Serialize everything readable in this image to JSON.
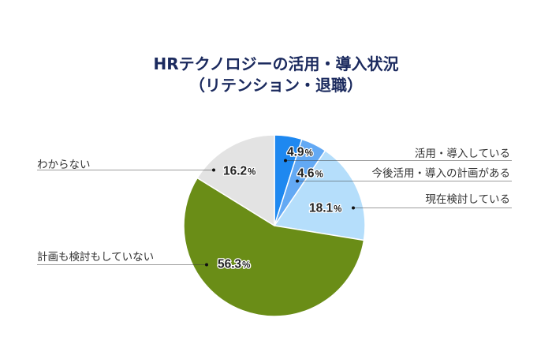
{
  "chart_data": {
    "type": "pie",
    "title": "HRテクノロジーの活用・導入状況",
    "subtitle": "（リテンション・退職）",
    "start_angle_deg": 0,
    "direction": "clockwise",
    "unit": "%",
    "categories": [
      "活用・導入している",
      "今後活用・導入の計画がある",
      "現在検討している",
      "計画も検討もしていない",
      "わからない"
    ],
    "values": [
      4.9,
      4.6,
      18.1,
      56.3,
      16.2
    ],
    "value_labels": [
      "4.9",
      "4.6",
      "18.1",
      "56.3",
      "16.2"
    ],
    "colors": [
      "#1E88F0",
      "#63A9F4",
      "#B5DEFB",
      "#6A8D17",
      "#E3E3E3"
    ],
    "legend": "none (leader-line labels)"
  }
}
